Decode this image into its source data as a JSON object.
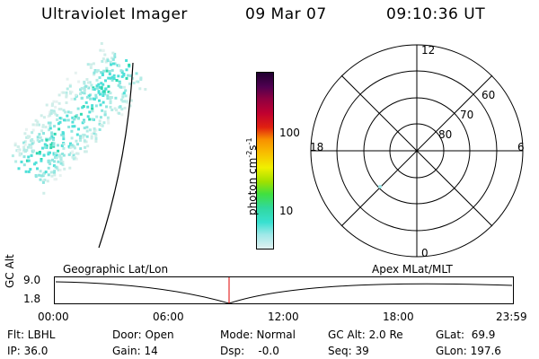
{
  "header": {
    "instrument": "Ultraviolet Imager",
    "date": "09 Mar 07",
    "time": "09:10:36 UT"
  },
  "colorbar": {
    "unit_prefix": "photon cm",
    "unit_exp1": "-2",
    "unit_mid": "s",
    "unit_exp2": "-1",
    "ticks": [
      {
        "label": "100",
        "value": 100
      },
      {
        "label": "10",
        "value": 10
      }
    ],
    "colors": [
      "#e0f0f0",
      "#9ee8e8",
      "#38e0d0",
      "#30d8a0",
      "#40e040",
      "#a0e000",
      "#f0f000",
      "#f8c000",
      "#f89000",
      "#e02010",
      "#c00030",
      "#900040",
      "#500050",
      "#200030"
    ]
  },
  "polar_plot": {
    "mlt_labels": [
      "12",
      "18",
      "6",
      "0"
    ],
    "mlat_labels": [
      "60",
      "70",
      "80"
    ]
  },
  "timeline": {
    "y_label": "GC Alt",
    "y_ticks": [
      "9.0",
      "1.8"
    ],
    "left_label": "Geographic Lat/Lon",
    "right_label": "Apex MLat/MLT",
    "x_ticks": [
      "00:00",
      "06:00",
      "12:00",
      "18:00",
      "23:59"
    ],
    "marker_color": "#e00000"
  },
  "info": {
    "flt": "Flt: LBHL",
    "ip": "IP: 36.0",
    "door": "Door: Open",
    "gain": "Gain: 14",
    "mode": "Mode: Normal",
    "dsp": "Dsp:    -0.0",
    "gcalt": "GC Alt: 2.0 Re",
    "seq": "Seq: 39",
    "glat": "GLat:  69.9",
    "glon": "GLon: 197.6"
  }
}
